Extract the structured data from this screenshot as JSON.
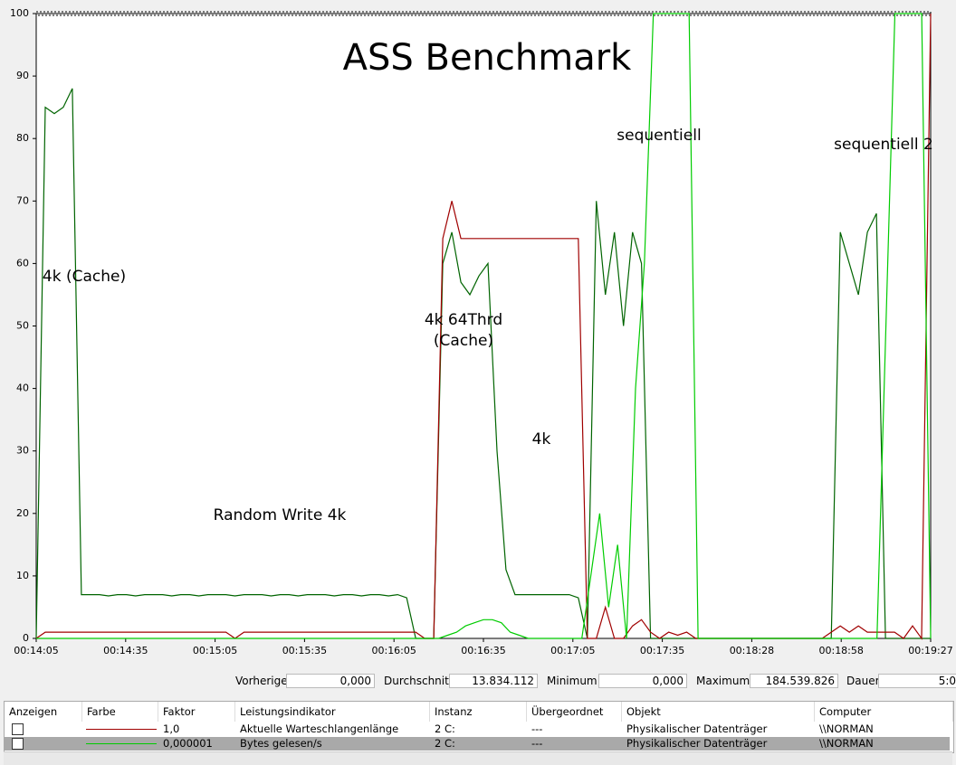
{
  "chart_data": {
    "type": "line",
    "title": "ASS Benchmark",
    "annotations": [
      "4k (Cache)",
      "Random Write 4k",
      "4k 64Thrd",
      "(Cache)",
      "4k",
      "sequentiell",
      "sequentiell 2"
    ],
    "xticks": [
      "00:14:05",
      "00:14:35",
      "00:15:05",
      "00:15:35",
      "00:16:05",
      "00:16:35",
      "00:17:05",
      "00:17:35",
      "00:18:28",
      "00:18:58",
      "00:19:27"
    ],
    "ylim": [
      0,
      100
    ],
    "yticks": [
      0,
      10,
      20,
      30,
      40,
      50,
      60,
      70,
      80,
      90,
      100
    ],
    "grid": false,
    "series": [
      {
        "color": "#006400",
        "values": [
          0,
          85,
          84,
          85,
          88,
          7,
          7,
          7,
          6.8,
          7,
          7,
          6.8,
          7,
          7,
          7,
          6.8,
          7,
          7,
          6.8,
          7,
          7,
          7,
          6.8,
          7,
          7,
          7,
          6.8,
          7,
          7,
          6.8,
          7,
          7,
          7,
          6.8,
          7,
          7,
          6.8,
          7,
          7,
          6.8,
          7,
          6.5,
          0,
          0,
          0,
          60,
          65,
          57,
          55,
          58,
          60,
          30,
          11,
          7,
          7,
          7,
          7,
          7,
          7,
          7,
          6.5,
          0,
          70,
          55,
          65,
          50,
          65,
          60,
          0,
          0,
          0,
          0,
          0,
          0,
          0,
          0,
          0,
          0,
          0,
          0,
          0,
          0,
          0,
          0,
          0,
          0,
          0,
          0,
          0,
          65,
          60,
          55,
          65,
          68,
          0,
          0,
          0,
          0,
          0,
          0
        ]
      },
      {
        "name": "Aktuelle Warteschlangenlänge",
        "color": "#a00000",
        "values": [
          0,
          1,
          1,
          1,
          1,
          1,
          1,
          1,
          1,
          1,
          1,
          1,
          1,
          1,
          1,
          1,
          1,
          1,
          1,
          1,
          1,
          1,
          0,
          1,
          1,
          1,
          1,
          1,
          1,
          1,
          1,
          1,
          1,
          1,
          1,
          1,
          1,
          1,
          1,
          1,
          1,
          1,
          1,
          0,
          0,
          64,
          70,
          64,
          64,
          64,
          64,
          64,
          64,
          64,
          64,
          64,
          64,
          64,
          64,
          64,
          64,
          0,
          0,
          5,
          0,
          0,
          2,
          3,
          1,
          0,
          1,
          0.5,
          1,
          0,
          0,
          0,
          0,
          0,
          0,
          0,
          0,
          0,
          0,
          0,
          0,
          0,
          0,
          0,
          1,
          2,
          1,
          2,
          1,
          1,
          1,
          1,
          0,
          2,
          0,
          100
        ]
      },
      {
        "name": "Bytes gelesen/s",
        "color": "#00cc00",
        "values": [
          0,
          0,
          0,
          0,
          0,
          0,
          0,
          0,
          0,
          0,
          0,
          0,
          0,
          0,
          0,
          0,
          0,
          0,
          0,
          0,
          0,
          0,
          0,
          0,
          0,
          0,
          0,
          0,
          0,
          0,
          0,
          0,
          0,
          0,
          0,
          0,
          0,
          0,
          0,
          0,
          0,
          0,
          0,
          0,
          0,
          0,
          0.5,
          1,
          2,
          2.5,
          3,
          3,
          2.5,
          1,
          0.5,
          0,
          0,
          0,
          0,
          0,
          0,
          0,
          10,
          20,
          5,
          15,
          0,
          40,
          60,
          100,
          100,
          100,
          100,
          100,
          0,
          0,
          0,
          0,
          0,
          0,
          0,
          0,
          0,
          0,
          0,
          0,
          0,
          0,
          0,
          0,
          0,
          0,
          0,
          0,
          0,
          50,
          100,
          100,
          100,
          100,
          0
        ]
      }
    ]
  },
  "stats": [
    {
      "label": "Vorherige",
      "value": "0,000"
    },
    {
      "label": "Durchschnitt",
      "value": "13.834.112"
    },
    {
      "label": "Minimum",
      "value": "0,000"
    },
    {
      "label": "Maximum",
      "value": "184.539.826"
    },
    {
      "label": "Dauer",
      "value": "5:0"
    }
  ],
  "table": {
    "headers": [
      "Anzeigen",
      "Farbe",
      "Faktor",
      "Leistungsindikator",
      "Instanz",
      "Übergeordnet",
      "Objekt",
      "Computer"
    ],
    "rows": [
      {
        "factor": "1,0",
        "instance": "2 C:",
        "parent": "---",
        "object": "Physikalischer Datenträger",
        "computer": "\\\\NORMAN"
      },
      {
        "factor": "0,000001",
        "instance": "2 C:",
        "parent": "---",
        "object": "Physikalischer Datenträger",
        "computer": "\\\\NORMAN"
      }
    ]
  }
}
